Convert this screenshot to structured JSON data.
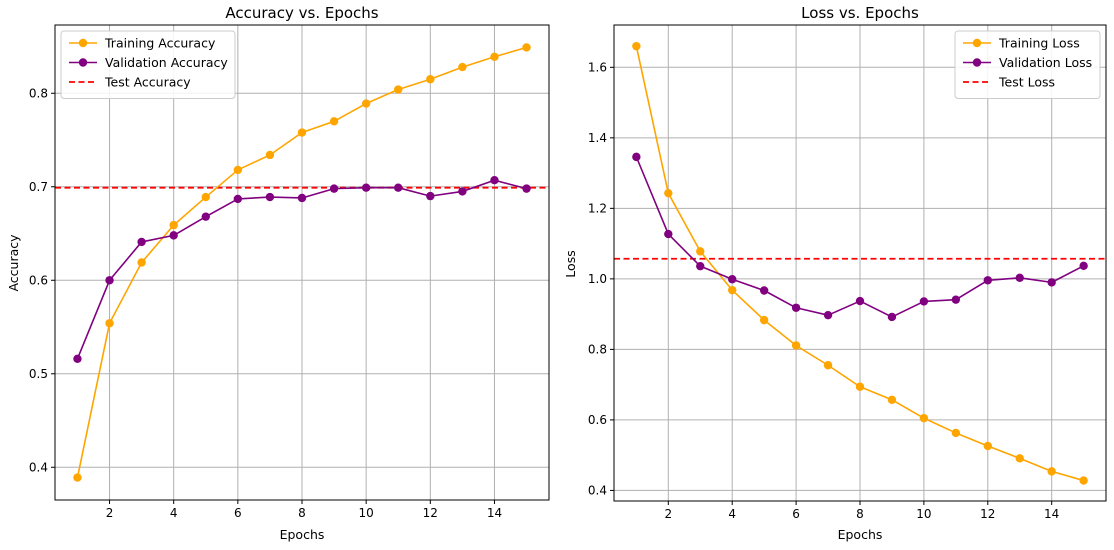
{
  "chart_data": [
    {
      "type": "line",
      "title": "Accuracy vs. Epochs",
      "xlabel": "Epochs",
      "ylabel": "Accuracy",
      "xlim": [
        0.3,
        15.7
      ],
      "ylim": [
        0.365,
        0.873
      ],
      "xticks": [
        2,
        4,
        6,
        8,
        10,
        12,
        14
      ],
      "yticks": [
        0.4,
        0.5,
        0.6,
        0.7,
        0.8
      ],
      "grid": true,
      "legend_position": "top-left",
      "x": [
        1,
        2,
        3,
        4,
        5,
        6,
        7,
        8,
        9,
        10,
        11,
        12,
        13,
        14,
        15
      ],
      "series": [
        {
          "name": "Training Accuracy",
          "color": "#ffa500",
          "style": "line-marker",
          "values": [
            0.389,
            0.554,
            0.619,
            0.659,
            0.689,
            0.718,
            0.734,
            0.758,
            0.77,
            0.789,
            0.804,
            0.815,
            0.828,
            0.839,
            0.849
          ]
        },
        {
          "name": "Validation Accuracy",
          "color": "#800080",
          "style": "line-marker",
          "values": [
            0.516,
            0.6,
            0.641,
            0.648,
            0.668,
            0.687,
            0.689,
            0.688,
            0.698,
            0.699,
            0.699,
            0.69,
            0.695,
            0.707,
            0.698
          ]
        }
      ],
      "reference_lines": [
        {
          "name": "Test Accuracy",
          "color": "#ff0000",
          "style": "dashed",
          "value": 0.699
        }
      ]
    },
    {
      "type": "line",
      "title": "Loss vs. Epochs",
      "xlabel": "Epochs",
      "ylabel": "Loss",
      "xlim": [
        0.3,
        15.7
      ],
      "ylim": [
        0.37,
        1.72
      ],
      "xticks": [
        2,
        4,
        6,
        8,
        10,
        12,
        14
      ],
      "yticks": [
        0.4,
        0.6,
        0.8,
        1.0,
        1.2,
        1.4,
        1.6
      ],
      "grid": true,
      "legend_position": "top-right",
      "x": [
        1,
        2,
        3,
        4,
        5,
        6,
        7,
        8,
        9,
        10,
        11,
        12,
        13,
        14,
        15
      ],
      "series": [
        {
          "name": "Training Loss",
          "color": "#ffa500",
          "style": "line-marker",
          "values": [
            1.66,
            1.243,
            1.078,
            0.968,
            0.883,
            0.811,
            0.755,
            0.694,
            0.657,
            0.605,
            0.563,
            0.526,
            0.491,
            0.454,
            0.428
          ]
        },
        {
          "name": "Validation Loss",
          "color": "#800080",
          "style": "line-marker",
          "values": [
            1.346,
            1.127,
            1.036,
            0.999,
            0.967,
            0.918,
            0.897,
            0.937,
            0.892,
            0.936,
            0.941,
            0.996,
            1.003,
            0.99,
            1.037
          ]
        }
      ],
      "reference_lines": [
        {
          "name": "Test Loss",
          "color": "#ff0000",
          "style": "dashed",
          "value": 1.057
        }
      ]
    }
  ]
}
